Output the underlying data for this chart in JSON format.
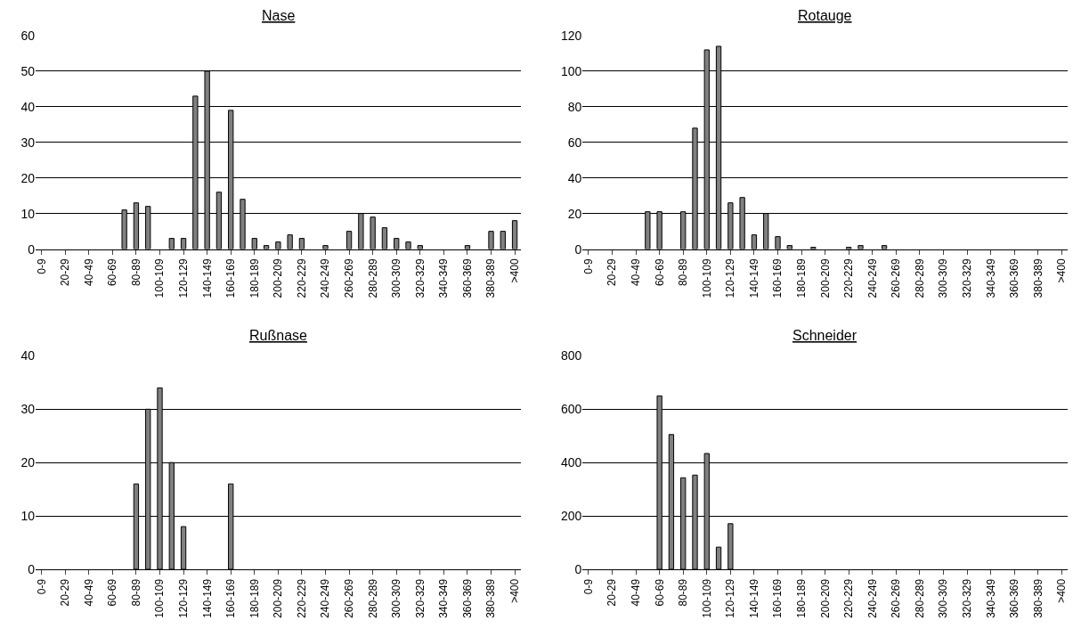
{
  "chart_data": [
    {
      "type": "bar",
      "title": "Nase",
      "categories": [
        "0-9",
        null,
        "20-29",
        null,
        "40-49",
        null,
        "60-69",
        null,
        "80-89",
        null,
        "100-109",
        null,
        "120-129",
        null,
        "140-149",
        null,
        "160-169",
        null,
        "180-189",
        null,
        "200-209",
        null,
        "220-229",
        null,
        "240-249",
        null,
        "260-269",
        null,
        "280-289",
        null,
        "300-309",
        null,
        "320-329",
        null,
        "340-349",
        null,
        "360-369",
        null,
        "380-389",
        null,
        ">400"
      ],
      "values": [
        0,
        0,
        0,
        0,
        0,
        0,
        0,
        11,
        13,
        12,
        0,
        3,
        3,
        43,
        50,
        16,
        39,
        14,
        3,
        1,
        2,
        4,
        3,
        0,
        1,
        0,
        5,
        10,
        9,
        6,
        3,
        2,
        1,
        0,
        0,
        0,
        1,
        0,
        5,
        5,
        8
      ],
      "color": "#808080",
      "ylim": [
        0,
        60
      ],
      "yticks": [
        0,
        10,
        20,
        30,
        40,
        50,
        60
      ],
      "grid": "y"
    },
    {
      "type": "bar",
      "title": "Rotauge",
      "categories": [
        "0-9",
        null,
        "20-29",
        null,
        "40-49",
        null,
        "60-69",
        null,
        "80-89",
        null,
        "100-109",
        null,
        "120-129",
        null,
        "140-149",
        null,
        "160-169",
        null,
        "180-189",
        null,
        "200-209",
        null,
        "220-229",
        null,
        "240-249",
        null,
        "260-269",
        null,
        "280-289",
        null,
        "300-309",
        null,
        "320-329",
        null,
        "340-349",
        null,
        "360-369",
        null,
        "380-389",
        null,
        ">400"
      ],
      "values": [
        0,
        0,
        0,
        0,
        0,
        21,
        21,
        0,
        21,
        68,
        112,
        114,
        26,
        29,
        8,
        20,
        7,
        2,
        0,
        1,
        0,
        0,
        1,
        2,
        0,
        2,
        0,
        0,
        0,
        0,
        0,
        0,
        0,
        0,
        0,
        0,
        0,
        0,
        0,
        0,
        0
      ],
      "color": "#808080",
      "ylim": [
        0,
        120
      ],
      "yticks": [
        0,
        20,
        40,
        60,
        80,
        100,
        120
      ],
      "grid": "y"
    },
    {
      "type": "bar",
      "title": "Rußnase",
      "categories": [
        "0-9",
        null,
        "20-29",
        null,
        "40-49",
        null,
        "60-69",
        null,
        "80-89",
        null,
        "100-109",
        null,
        "120-129",
        null,
        "140-149",
        null,
        "160-169",
        null,
        "180-189",
        null,
        "200-209",
        null,
        "220-229",
        null,
        "240-249",
        null,
        "260-269",
        null,
        "280-289",
        null,
        "300-309",
        null,
        "320-329",
        null,
        "340-349",
        null,
        "360-369",
        null,
        "380-389",
        null,
        ">400"
      ],
      "values": [
        0,
        0,
        0,
        0,
        0,
        0,
        0,
        0,
        16,
        30,
        34,
        20,
        8,
        0,
        0,
        0,
        16,
        0,
        0,
        0,
        0,
        0,
        0,
        0,
        0,
        0,
        0,
        0,
        0,
        0,
        0,
        0,
        0,
        0,
        0,
        0,
        0,
        0,
        0,
        0,
        0
      ],
      "color": "#808080",
      "ylim": [
        0,
        40
      ],
      "yticks": [
        0,
        10,
        20,
        30,
        40
      ],
      "grid": "y"
    },
    {
      "type": "bar",
      "title": "Schneider",
      "categories": [
        "0-9",
        null,
        "20-29",
        null,
        "40-49",
        null,
        "60-69",
        null,
        "80-89",
        null,
        "100-109",
        null,
        "120-129",
        null,
        "140-149",
        null,
        "160-169",
        null,
        "180-189",
        null,
        "200-209",
        null,
        "220-229",
        null,
        "240-249",
        null,
        "260-269",
        null,
        "280-289",
        null,
        "300-309",
        null,
        "320-329",
        null,
        "340-349",
        null,
        "360-369",
        null,
        "380-389",
        null,
        ">400"
      ],
      "values": [
        0,
        0,
        0,
        0,
        0,
        0,
        650,
        505,
        343,
        353,
        434,
        83,
        171,
        0,
        0,
        0,
        0,
        0,
        0,
        0,
        0,
        0,
        0,
        0,
        0,
        0,
        0,
        0,
        0,
        0,
        0,
        0,
        0,
        0,
        0,
        0,
        0,
        0,
        0,
        0,
        0
      ],
      "color": "#808080",
      "ylim": [
        0,
        800
      ],
      "yticks": [
        0,
        200,
        400,
        600,
        800
      ],
      "grid": "y"
    }
  ]
}
